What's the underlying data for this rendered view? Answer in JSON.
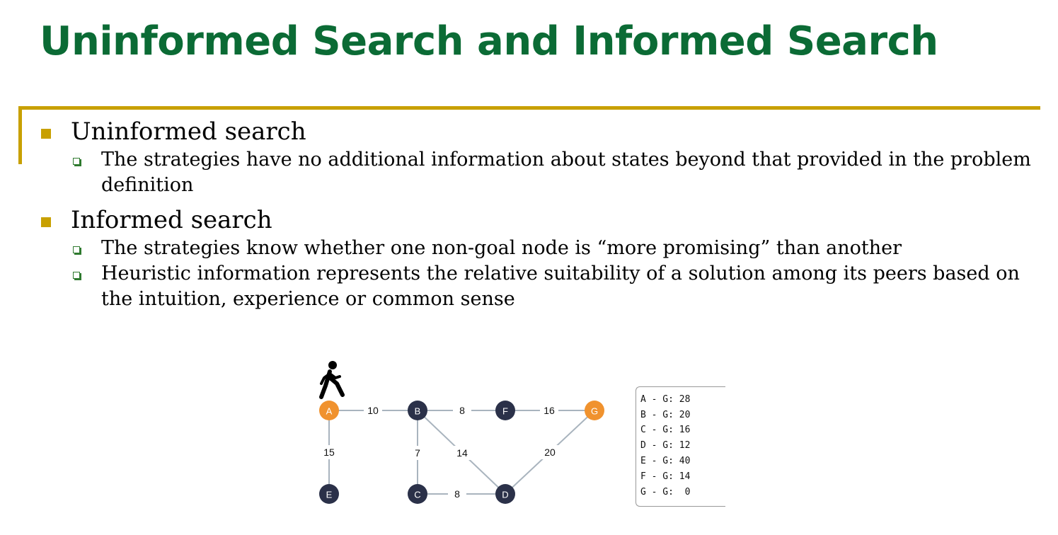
{
  "title": "Uninformed Search and Informed Search",
  "bullets": [
    {
      "text": "Uninformed search",
      "sub": [
        "The strategies have no additional information about states beyond that provided in the problem definition"
      ]
    },
    {
      "text": "Informed search",
      "sub": [
        "The strategies know whether one non-goal node is “more promising” than another",
        "Heuristic information represents the relative suitability of a solution among its peers based on the intuition, experience or common sense"
      ]
    }
  ],
  "graph": {
    "nodes": [
      {
        "id": "A",
        "color": "#f0922e"
      },
      {
        "id": "B",
        "color": "#2b3149"
      },
      {
        "id": "F",
        "color": "#2b3149"
      },
      {
        "id": "G",
        "color": "#f0922e"
      },
      {
        "id": "E",
        "color": "#2b3149"
      },
      {
        "id": "C",
        "color": "#2b3149"
      },
      {
        "id": "D",
        "color": "#2b3149"
      }
    ],
    "edges": [
      {
        "from": "A",
        "to": "B",
        "weight": "10"
      },
      {
        "from": "B",
        "to": "F",
        "weight": "8"
      },
      {
        "from": "F",
        "to": "G",
        "weight": "16"
      },
      {
        "from": "A",
        "to": "E",
        "weight": "15"
      },
      {
        "from": "B",
        "to": "C",
        "weight": "7"
      },
      {
        "from": "B",
        "to": "D",
        "weight": "14"
      },
      {
        "from": "C",
        "to": "D",
        "weight": "8"
      },
      {
        "from": "D",
        "to": "G",
        "weight": "20"
      }
    ],
    "walker_icon": "person-walking-icon"
  },
  "heuristic_table": [
    "A - G: 28",
    "B - G: 20",
    "C - G: 16",
    "D - G: 12",
    "E - G: 40",
    "F - G: 14",
    "G - G:  0"
  ]
}
